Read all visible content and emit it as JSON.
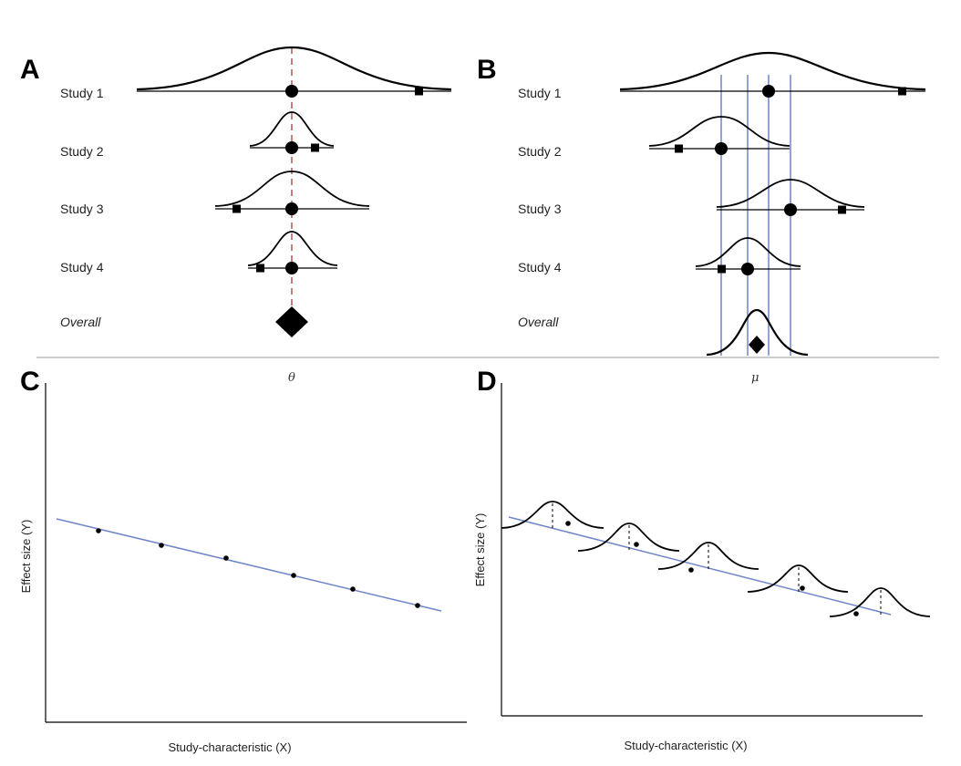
{
  "panels": {
    "A": {
      "letter": "A",
      "axis_symbol": "θ"
    },
    "B": {
      "letter": "B",
      "axis_symbol": "μ"
    },
    "C": {
      "letter": "C",
      "xlabel": "Study-characteristic (X)",
      "ylabel": "Effect size (Y)"
    },
    "D": {
      "letter": "D",
      "xlabel": "Study-characteristic (X)",
      "ylabel": "Effect size (Y)"
    }
  },
  "rows": [
    "Study 1",
    "Study 2",
    "Study 3",
    "Study 4",
    "Overall"
  ],
  "colors": {
    "ink": "#000000",
    "reference_line": "#b03a3a",
    "blue_line": "#6f86c9",
    "divider": "#9a9a9a"
  }
}
